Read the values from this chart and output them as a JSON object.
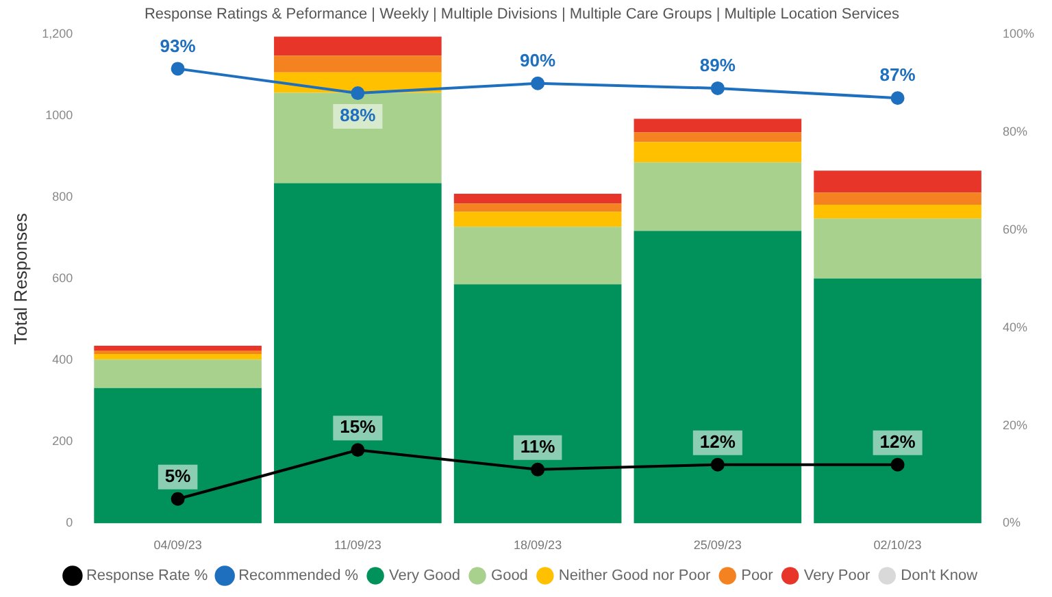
{
  "chart_data": {
    "type": "bar",
    "title": "Response Ratings & Peformance | Weekly | Multiple Divisions | Multiple Care Groups | Multiple Location Services",
    "ylabel": "Total Responses",
    "categories": [
      "04/09/23",
      "11/09/23",
      "18/09/23",
      "25/09/23",
      "02/10/23"
    ],
    "stacked": true,
    "series": [
      {
        "name": "Very Good",
        "color": "#00925a",
        "values": [
          332,
          835,
          587,
          718,
          601
        ]
      },
      {
        "name": "Good",
        "color": "#a9d18e",
        "values": [
          70,
          222,
          141,
          168,
          147
        ]
      },
      {
        "name": "Neither Good nor Poor",
        "color": "#ffc000",
        "values": [
          14,
          50,
          37,
          50,
          34
        ]
      },
      {
        "name": "Poor",
        "color": "#f58220",
        "values": [
          8,
          41,
          20,
          24,
          30
        ]
      },
      {
        "name": "Very Poor",
        "color": "#e8352a",
        "values": [
          12,
          47,
          24,
          33,
          54
        ]
      },
      {
        "name": "Don't Know",
        "color": "#d9d9d9",
        "values": [
          0,
          0,
          0,
          0,
          0
        ]
      },
      {
        "name": "Response Rate %",
        "type": "line",
        "axis": "y2",
        "color": "#000000",
        "values": [
          5,
          15,
          11,
          12,
          12
        ],
        "value_labels": [
          "5%",
          "15%",
          "11%",
          "12%",
          "12%"
        ]
      },
      {
        "name": "Recommended %",
        "type": "line",
        "axis": "y2",
        "color": "#1f6fbf",
        "values": [
          93,
          88,
          90,
          89,
          87
        ],
        "value_labels": [
          "93%",
          "88%",
          "90%",
          "89%",
          "87%"
        ]
      }
    ],
    "ylim": [
      0,
      1200
    ],
    "yticks": [
      0,
      200,
      400,
      600,
      800,
      1000,
      {
        "value": 1200,
        "label": "1,200"
      }
    ],
    "y2lim": [
      0,
      100
    ],
    "y2ticks": [
      {
        "value": 0,
        "label": "0%"
      },
      {
        "value": 20,
        "label": "20%"
      },
      {
        "value": 40,
        "label": "40%"
      },
      {
        "value": 60,
        "label": "60%"
      },
      {
        "value": 80,
        "label": "80%"
      },
      {
        "value": 100,
        "label": "100%"
      }
    ],
    "marker": "circle",
    "grid": false,
    "legend": "bottom"
  }
}
